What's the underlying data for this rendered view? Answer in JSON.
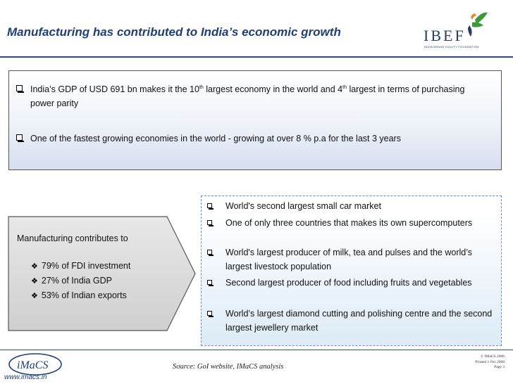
{
  "header": {
    "title": "Manufacturing has contributed to India’s economic growth",
    "logo_text": "IBEF",
    "logo_subtext": "INDIA BRAND EQUITY FOUNDATION"
  },
  "top_box": {
    "bullet1": {
      "part1": "India’s GDP of USD 691 bn makes it the 10",
      "sup1": "th",
      "part2": " largest economy in the world and 4",
      "sup2": "th",
      "part3": " largest in terms of purchasing power parity"
    },
    "bullet2": "One of the fastest growing economies in the world - growing at over 8 % p.a for the last 3 years"
  },
  "arrow_box": {
    "label": "Manufacturing contributes to",
    "items": [
      "79% of FDI investment",
      "27% of India GDP",
      "53% of Indian exports"
    ]
  },
  "right_box": {
    "items": [
      "World's second largest small car market",
      "One of only three countries that makes its own supercomputers",
      "World's largest producer of milk, tea and pulses and the world’s largest livestock population",
      "Second largest producer of food including fruits and vegetables",
      "World’s largest diamond cutting and polishing centre and the second largest jewellery market"
    ]
  },
  "footer": {
    "imacs_logo_text": "iMaCS",
    "url": "www.imacs.in",
    "source": "Source: GoI website, IMaCS analysis",
    "copyright": "© IMaCS 2006",
    "printed": "Printed 1 Oct 2008",
    "page": "Page 3"
  },
  "colors": {
    "title": "#1f3e7a",
    "accent_green": "#3a9a3a",
    "accent_orange": "#e8891c"
  }
}
